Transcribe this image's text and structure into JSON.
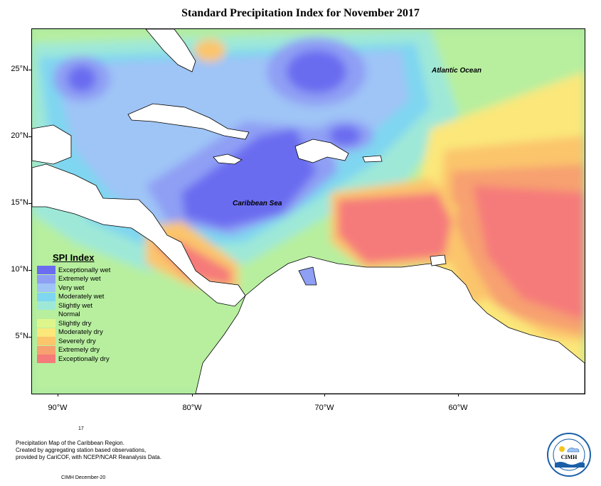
{
  "title": "Standard Precipitation Index for November 2017",
  "map": {
    "ocean_labels": {
      "atlantic": "Atlantic Ocean",
      "caribbean": "Caribbean Sea"
    },
    "lat_labels": [
      "25°N",
      "20°N",
      "15°N",
      "10°N",
      "5°N"
    ],
    "lon_labels": [
      "90°W",
      "80°W",
      "70°W",
      "60°W"
    ]
  },
  "legend": {
    "title": "SPI Index",
    "items": [
      {
        "label": "Exceptionally wet",
        "color": "#6b6cf0"
      },
      {
        "label": "Extremely wet",
        "color": "#8f9ff4"
      },
      {
        "label": "Very wet",
        "color": "#9fc4f6"
      },
      {
        "label": "Moderately wet",
        "color": "#7fd6f0"
      },
      {
        "label": "Slightly wet",
        "color": "#9ee8d8"
      },
      {
        "label": "Normal",
        "color": "#b7ef9f"
      },
      {
        "label": "Slightly dry",
        "color": "#def58c"
      },
      {
        "label": "Moderately dry",
        "color": "#fbe77a"
      },
      {
        "label": "Severely dry",
        "color": "#fbc56c"
      },
      {
        "label": "Extremely dry",
        "color": "#f7a070"
      },
      {
        "label": "Exceptionally dry",
        "color": "#f57a7a"
      }
    ]
  },
  "footer": {
    "number": "17",
    "line1": "Precipitation Map of the Caribbean Region.",
    "line2": "Created by aggregating station based observations,",
    "line3": "provided by CariCOF, with NCEP/NCAR Reanalysis Data.",
    "credit": "CIMH December-20"
  },
  "logo": {
    "text": "CIMH"
  }
}
